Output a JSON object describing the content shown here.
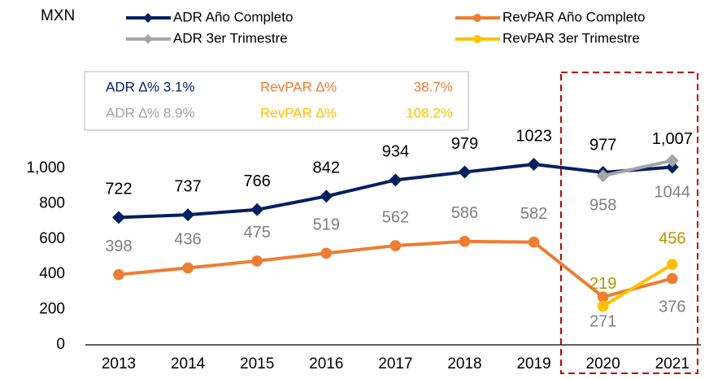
{
  "chart_data": {
    "type": "line",
    "y_unit_label": "MXN",
    "categories": [
      "2013",
      "2014",
      "2015",
      "2016",
      "2017",
      "2018",
      "2019",
      "2020",
      "2021"
    ],
    "ylim": [
      0,
      1000
    ],
    "yticks": [
      0,
      200,
      400,
      600,
      800,
      {
        "value": 1000,
        "label": "1,000"
      }
    ],
    "series": [
      {
        "name": "ADR Año Completo",
        "color": "#002060",
        "marker": "diamond",
        "label_color": "#000000",
        "values": [
          722,
          737,
          766,
          842,
          934,
          979,
          1023,
          977,
          1007
        ],
        "value_labels": [
          "722",
          "737",
          "766",
          "842",
          "934",
          "979",
          "1023",
          "977",
          "1,007"
        ]
      },
      {
        "name": "RevPAR Año Completo",
        "color": "#ED7D31",
        "marker": "circle",
        "label_color": "#808080",
        "values": [
          398,
          436,
          475,
          519,
          562,
          586,
          582,
          271,
          376
        ]
      },
      {
        "name": "ADR 3er Trimestre",
        "color": "#A5A5A5",
        "marker": "diamond",
        "label_color": "#808080",
        "values": [
          null,
          null,
          null,
          null,
          null,
          null,
          null,
          958,
          1044
        ]
      },
      {
        "name": "RevPAR 3er Trimestre",
        "color": "#FFC000",
        "marker": "circle",
        "label_color": "#BF9000",
        "values": [
          null,
          null,
          null,
          null,
          null,
          null,
          null,
          219,
          456
        ]
      }
    ],
    "annotations": [
      {
        "text": "ADR ∆% 3.1%",
        "color": "#002060"
      },
      {
        "text": "RevPAR ∆%",
        "color": "#ED7D31"
      },
      {
        "text": "38.7%",
        "color": "#ED7D31"
      },
      {
        "text": "ADR ∆% 8.9%",
        "color": "#A5A5A5"
      },
      {
        "text": "RevPAR ∆%",
        "color": "#FFC000"
      },
      {
        "text": "108.2%",
        "color": "#FFC000"
      }
    ]
  }
}
